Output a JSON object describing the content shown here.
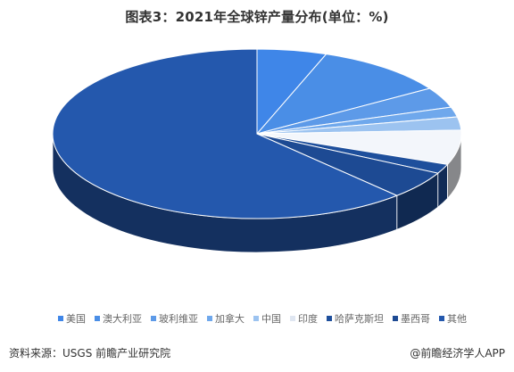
{
  "chart_data": {
    "type": "pie",
    "title": "图表3：2021年全球锌产量分布(单位：%)",
    "legend_position": "bottom",
    "slices": [
      {
        "name": "美国",
        "value": 5.5,
        "color": "#3f86e8"
      },
      {
        "name": "澳大利亚",
        "value": 10.5,
        "color": "#4a8ee6"
      },
      {
        "name": "玻利维亚",
        "value": 3.9,
        "color": "#5d9ae8"
      },
      {
        "name": "加拿大",
        "value": 1.9,
        "color": "#6fa8ec"
      },
      {
        "name": "中国",
        "value": 2.5,
        "color": "#9cc3f0"
      },
      {
        "name": "印度",
        "value": 6.6,
        "color": "#f3f6fb"
      },
      {
        "name": "哈萨克斯坦",
        "value": 1.8,
        "color": "#1e4f9c"
      },
      {
        "name": "墨西哥",
        "value": 5.3,
        "color": "#1d4a93"
      },
      {
        "name": "其他",
        "value": 62.0,
        "color": "#2458ad"
      }
    ]
  },
  "footer": {
    "source": "资料来源：USGS 前瞻产业研究院",
    "brand": "@前瞻经济学人APP"
  }
}
